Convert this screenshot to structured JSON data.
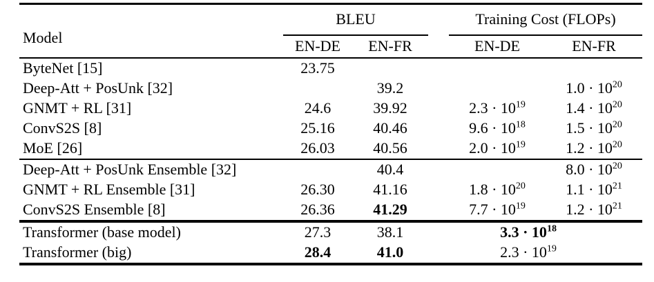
{
  "header": {
    "model": "Model",
    "groups": [
      {
        "label": "BLEU",
        "subs": [
          "EN-DE",
          "EN-FR"
        ]
      },
      {
        "label": "Training Cost (FLOPs)",
        "subs": [
          "EN-DE",
          "EN-FR"
        ]
      }
    ]
  },
  "notation": {
    "dot": "·",
    "base": "10"
  },
  "sections": [
    {
      "rows": [
        {
          "model": "ByteNet [15]",
          "bleu": [
            {
              "v": "23.75"
            },
            null
          ],
          "cost": [
            null,
            null
          ]
        },
        {
          "model": "Deep-Att + PosUnk [32]",
          "bleu": [
            null,
            {
              "v": "39.2"
            }
          ],
          "cost": [
            null,
            {
              "coef": "1.0",
              "exp": "20"
            }
          ]
        },
        {
          "model": "GNMT + RL [31]",
          "bleu": [
            {
              "v": "24.6"
            },
            {
              "v": "39.92"
            }
          ],
          "cost": [
            {
              "coef": "2.3",
              "exp": "19"
            },
            {
              "coef": "1.4",
              "exp": "20"
            }
          ]
        },
        {
          "model": "ConvS2S [8]",
          "bleu": [
            {
              "v": "25.16"
            },
            {
              "v": "40.46"
            }
          ],
          "cost": [
            {
              "coef": "9.6",
              "exp": "18"
            },
            {
              "coef": "1.5",
              "exp": "20"
            }
          ]
        },
        {
          "model": "MoE [26]",
          "bleu": [
            {
              "v": "26.03"
            },
            {
              "v": "40.56"
            }
          ],
          "cost": [
            {
              "coef": "2.0",
              "exp": "19"
            },
            {
              "coef": "1.2",
              "exp": "20"
            }
          ]
        }
      ]
    },
    {
      "rows": [
        {
          "model": "Deep-Att + PosUnk Ensemble [32]",
          "bleu": [
            null,
            {
              "v": "40.4"
            }
          ],
          "cost": [
            null,
            {
              "coef": "8.0",
              "exp": "20"
            }
          ]
        },
        {
          "model": "GNMT + RL Ensemble [31]",
          "bleu": [
            {
              "v": "26.30"
            },
            {
              "v": "41.16"
            }
          ],
          "cost": [
            {
              "coef": "1.8",
              "exp": "20"
            },
            {
              "coef": "1.1",
              "exp": "21"
            }
          ]
        },
        {
          "model": "ConvS2S Ensemble [8]",
          "bleu": [
            {
              "v": "26.36"
            },
            {
              "v": "41.29",
              "bold": true
            }
          ],
          "cost": [
            {
              "coef": "7.7",
              "exp": "19"
            },
            {
              "coef": "1.2",
              "exp": "21"
            }
          ]
        }
      ]
    },
    {
      "rows": [
        {
          "model": "Transformer (base model)",
          "bleu": [
            {
              "v": "27.3"
            },
            {
              "v": "38.1"
            }
          ],
          "cost_span": {
            "coef": "3.3",
            "exp": "18",
            "bold": true
          }
        },
        {
          "model": "Transformer (big)",
          "bleu": [
            {
              "v": "28.4",
              "bold": true
            },
            {
              "v": "41.0",
              "bold": true
            }
          ],
          "cost_span": {
            "coef": "2.3",
            "exp": "19"
          }
        }
      ]
    }
  ]
}
